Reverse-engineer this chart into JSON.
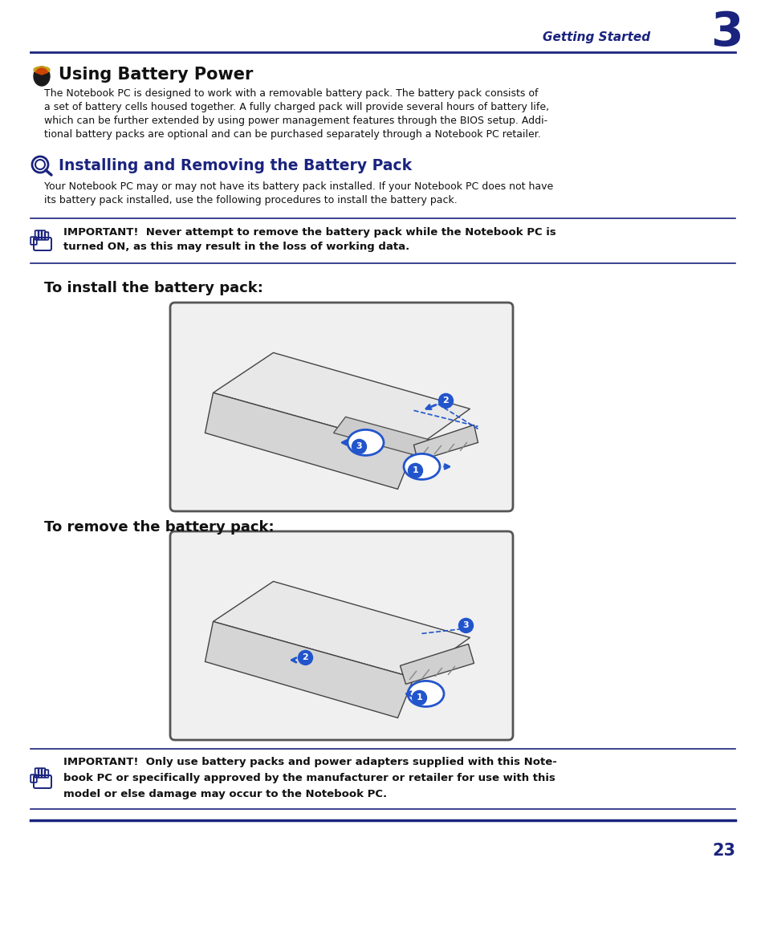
{
  "title_header": "Getting Started",
  "chapter_num": "3",
  "section1_title": "Using Battery Power",
  "section1_body_lines": [
    "The Notebook PC is designed to work with a removable battery pack. The battery pack consists of",
    "a set of battery cells housed together. A fully charged pack will provide several hours of battery life,",
    "which can be further extended by using power management features through the BIOS setup. Addi-",
    "tional battery packs are optional and can be purchased separately through a Notebook PC retailer."
  ],
  "section2_title": "Installing and Removing the Battery Pack",
  "section2_body_lines": [
    "Your Notebook PC may or may not have its battery pack installed. If your Notebook PC does not have",
    "its battery pack installed, use the following procedures to install the battery pack."
  ],
  "important1_lines": [
    "IMPORTANT!  Never attempt to remove the battery pack while the Notebook PC is",
    "turned ON, as this may result in the loss of working data."
  ],
  "install_title": "To install the battery pack:",
  "remove_title": "To remove the battery pack:",
  "important2_lines": [
    "IMPORTANT!  Only use battery packs and power adapters supplied with this Note-",
    "book PC or specifically approved by the manufacturer or retailer for use with this",
    "model or else damage may occur to the Notebook PC."
  ],
  "page_num": "23",
  "header_color": "#1a237e",
  "body_color": "#111111",
  "bg_color": "#ffffff",
  "line_color": "#1a237e",
  "box_edge_color": "#555555",
  "box_face_color": "#f0f0f0",
  "arrow_color": "#2255cc",
  "num_circle_color": "#2255cc"
}
